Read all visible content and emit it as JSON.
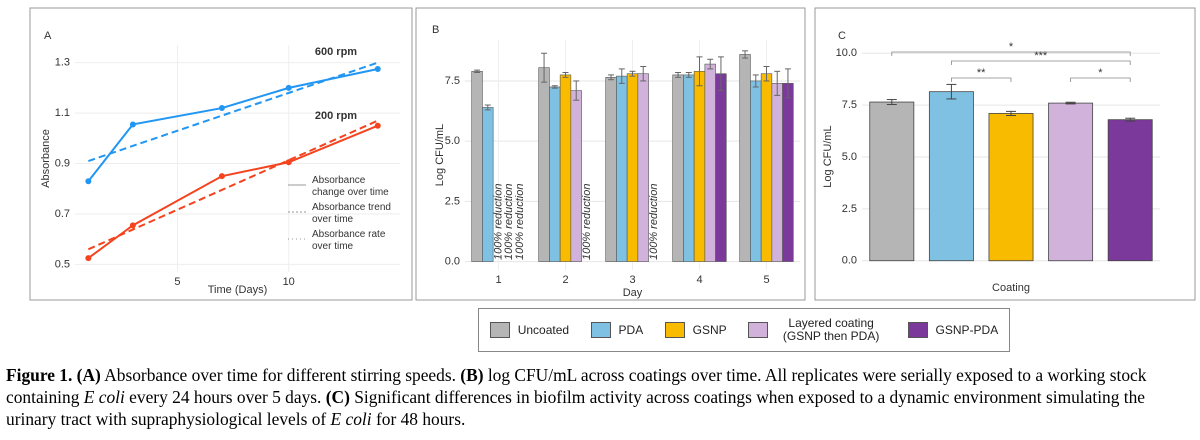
{
  "chart_data": [
    {
      "type": "line",
      "panel": "A",
      "x_label": "Time (Days)",
      "y_label": "Absorbance",
      "x": [
        1,
        3,
        7,
        10,
        14
      ],
      "trend_x": [
        1,
        14
      ],
      "series": [
        {
          "name": "600 rpm",
          "color": "#2196f3",
          "values": [
            0.83,
            1.055,
            1.12,
            1.2,
            1.275
          ],
          "trend": [
            0.91,
            1.3
          ]
        },
        {
          "name": "200 rpm",
          "color": "#f4431e",
          "values": [
            0.525,
            0.655,
            0.85,
            0.905,
            1.05
          ],
          "trend": [
            0.56,
            1.07
          ]
        }
      ],
      "legend": [
        "Absorbance change over time",
        "Absorbance trend over time",
        "Absorbance rate over time"
      ],
      "xlim": [
        0.4,
        15
      ],
      "xticks": [
        5,
        10
      ],
      "ylim": [
        0.47,
        1.37
      ],
      "yticks": [
        0.5,
        0.7,
        0.9,
        1.1,
        1.3
      ],
      "grid": true
    },
    {
      "type": "grouped-bar",
      "panel": "B",
      "x_label": "Day",
      "y_label": "Log CFU/mL",
      "categories": [
        "1",
        "2",
        "3",
        "4",
        "5"
      ],
      "series": [
        {
          "name": "Uncoated",
          "color": "#b5b5b5",
          "values": [
            7.9,
            8.05,
            7.65,
            7.75,
            8.6
          ],
          "errors": [
            0.05,
            0.6,
            0.1,
            0.1,
            0.15
          ]
        },
        {
          "name": "PDA",
          "color": "#7fc1e2",
          "values": [
            6.4,
            7.25,
            7.7,
            7.75,
            7.5
          ],
          "errors": [
            0.1,
            0.05,
            0.3,
            0.1,
            0.25
          ]
        },
        {
          "name": "GSNP",
          "color": "#f8bb00",
          "values": [
            null,
            7.75,
            7.8,
            7.9,
            7.8
          ],
          "errors": [
            null,
            0.1,
            0.1,
            0.6,
            0.3
          ]
        },
        {
          "name": "Layered coating (GSNP then PDA)",
          "color": "#d0b2da",
          "values": [
            null,
            7.1,
            7.8,
            8.2,
            7.4
          ],
          "errors": [
            null,
            0.4,
            0.3,
            0.2,
            0.5
          ]
        },
        {
          "name": "GSNP-PDA",
          "color": "#7b3a9b",
          "values": [
            null,
            null,
            null,
            7.8,
            7.4
          ],
          "errors": [
            null,
            null,
            null,
            0.7,
            0.6
          ]
        }
      ],
      "annotations": [
        "100% reduction",
        "100% reduction",
        "100% reduction",
        "100% reduction",
        "100% reduction"
      ],
      "ylim": [
        -0.35,
        9.2
      ],
      "yticks": [
        {
          "value": 0,
          "label": "0.0"
        },
        2.5,
        {
          "value": 5,
          "label": "5.0"
        },
        7.5
      ],
      "grid": true
    },
    {
      "type": "bar",
      "panel": "C",
      "x_label": "Coating",
      "y_label": "Log CFU/mL",
      "categories": [
        null,
        null,
        null,
        null,
        null
      ],
      "values": [
        7.65,
        8.15,
        7.1,
        7.6,
        6.8
      ],
      "errors": [
        0.12,
        0.35,
        0.1,
        0.04,
        0.07
      ],
      "colors": [
        "#b5b5b5",
        "#7fc1e2",
        "#f8bb00",
        "#d0b2da",
        "#7b3a9b"
      ],
      "annotations": [
        "*",
        "***",
        "**",
        "*"
      ],
      "ylim": [
        -0.35,
        10.4
      ],
      "yticks": [
        {
          "value": 0,
          "label": "0.0"
        },
        2.5,
        {
          "value": 5,
          "label": "5.0"
        },
        7.5,
        {
          "value": 10,
          "label": "10.0"
        }
      ],
      "grid": true
    }
  ],
  "caption": [
    {
      "text": "Figure 1. (A)",
      "style": "bold"
    },
    {
      "text": " Absorbance over time for different stirring speeds. ",
      "style": "normal"
    },
    {
      "text": "(B)",
      "style": "bold"
    },
    {
      "text": " log CFU/mL across coatings over time. All replicates were serially exposed to a working stock containing ",
      "style": "normal"
    },
    {
      "text": "E coli",
      "style": "italic"
    },
    {
      "text": " every 24 hours over 5 days. ",
      "style": "normal"
    },
    {
      "text": "(C)",
      "style": "bold"
    },
    {
      "text": " Significant differences in biofilm activity across coatings when exposed to a dynamic environment simulating the urinary tract with supraphysiological levels of ",
      "style": "normal"
    },
    {
      "text": "E coli",
      "style": "italic"
    },
    {
      "text": " for 48 hours.",
      "style": "normal"
    }
  ]
}
